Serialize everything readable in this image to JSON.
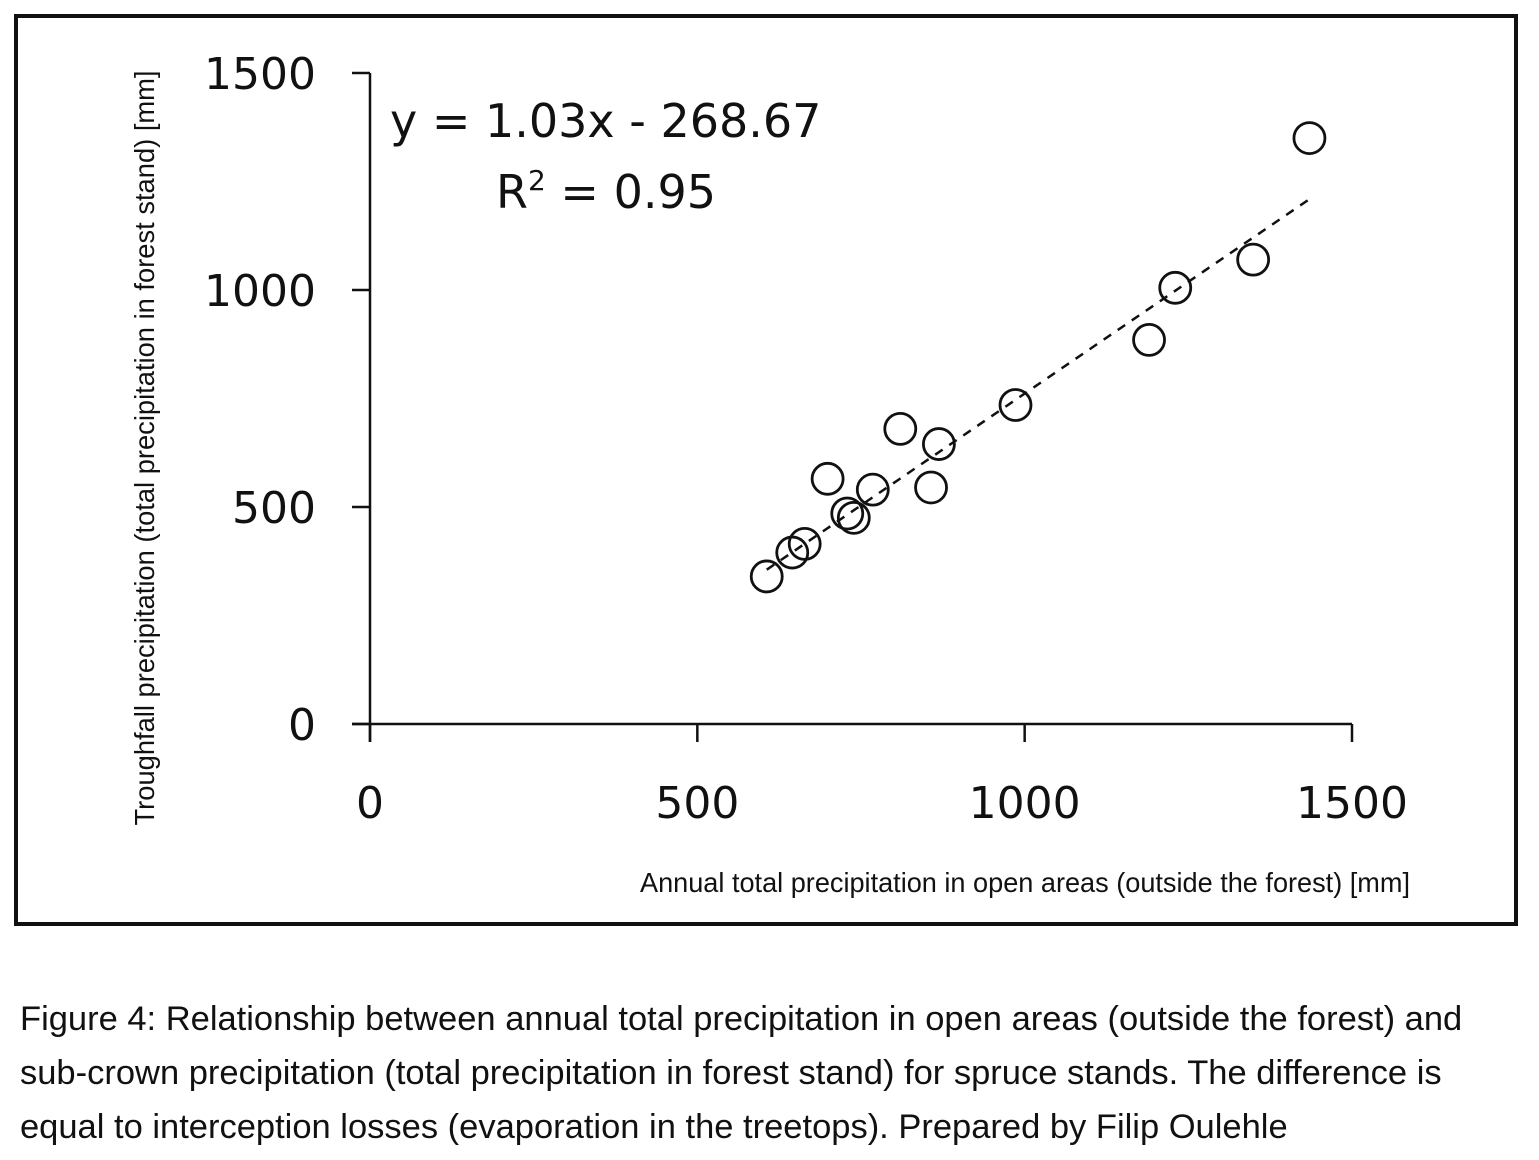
{
  "chart_data": {
    "type": "scatter",
    "title": "",
    "xlabel": "Annual total precipitation in open areas (outside the forest) [mm]",
    "ylabel": "Troughfall precipitation (total precipitation in forest stand) [mm]",
    "xlim": [
      0,
      1500
    ],
    "ylim": [
      0,
      1500
    ],
    "xticks": [
      0,
      500,
      1000,
      1500
    ],
    "yticks": [
      0,
      500,
      1000,
      1500
    ],
    "xtick_labels": [
      "0",
      "500",
      "1000",
      "1500"
    ],
    "ytick_labels": [
      "0",
      "500",
      "1000",
      "1500"
    ],
    "grid": false,
    "marker": "open-circle",
    "points": [
      {
        "x": 606,
        "y": 340
      },
      {
        "x": 645,
        "y": 395
      },
      {
        "x": 664,
        "y": 415
      },
      {
        "x": 699,
        "y": 565
      },
      {
        "x": 729,
        "y": 485
      },
      {
        "x": 739,
        "y": 475
      },
      {
        "x": 768,
        "y": 540
      },
      {
        "x": 810,
        "y": 680
      },
      {
        "x": 857,
        "y": 545
      },
      {
        "x": 869,
        "y": 645
      },
      {
        "x": 986,
        "y": 735
      },
      {
        "x": 1190,
        "y": 885
      },
      {
        "x": 1230,
        "y": 1005
      },
      {
        "x": 1349,
        "y": 1070
      },
      {
        "x": 1435,
        "y": 1350
      }
    ],
    "trendline": {
      "type": "linear",
      "slope": 1.03,
      "intercept": -268.67,
      "x_range": [
        606,
        1435
      ],
      "style": "dashed",
      "equation_label": "y = 1.03x - 268.67",
      "r2_label_prefix": "R",
      "r2_label_sup": "2",
      "r2_label_suffix": " = 0.95"
    }
  },
  "caption": {
    "line1": "Figure 4: Relationship between annual total precipitation in open areas (outside the forest) and",
    "line2": "sub-crown precipitation (total precipitation in forest stand) for spruce stands. The difference is",
    "line3": "equal to interception losses (evaporation in the treetops). Prepared by Filip Oulehle"
  },
  "colors": {
    "axis": "#111111",
    "marker_stroke": "#111111",
    "marker_fill": "#ffffff",
    "trendline": "#111111",
    "frame": "#111111"
  }
}
